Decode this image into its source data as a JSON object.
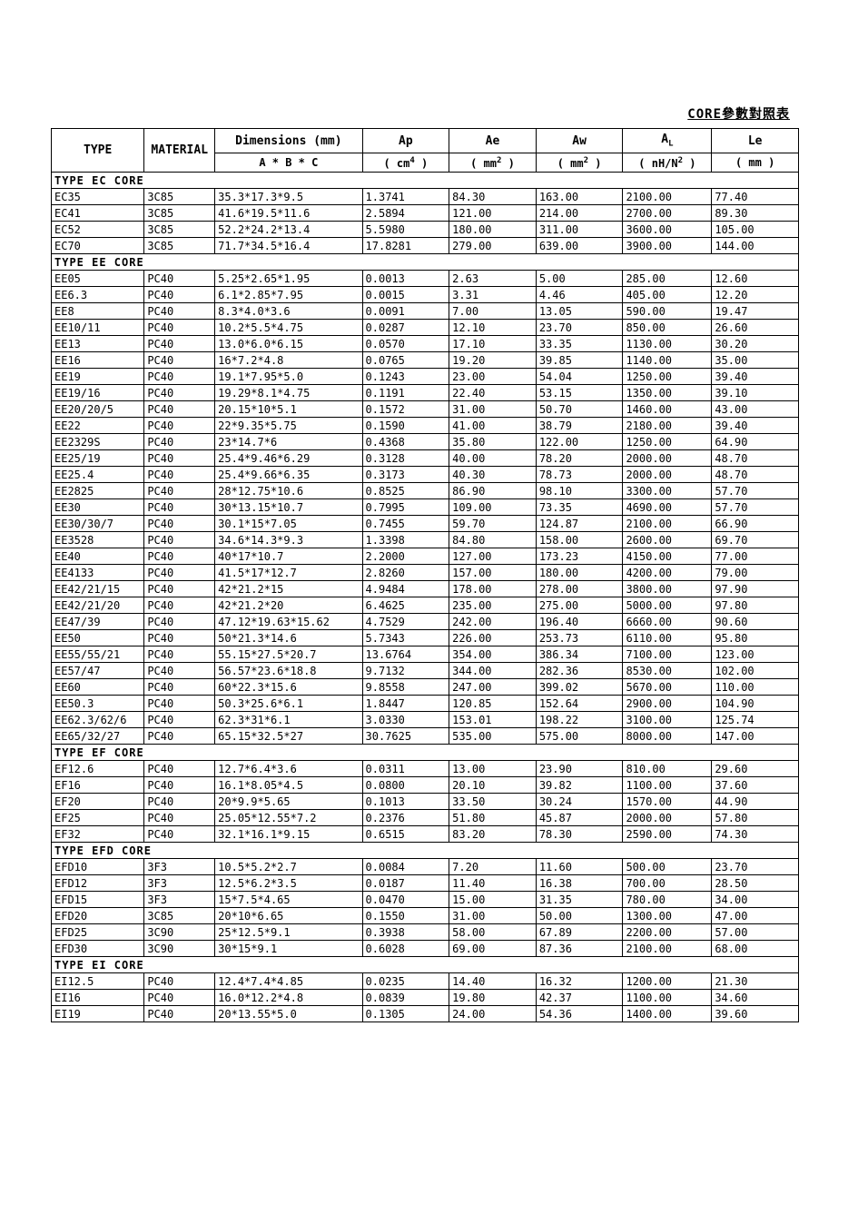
{
  "title": "CORE參數對照表",
  "columns": {
    "type": {
      "header": "TYPE",
      "unit": ""
    },
    "material": {
      "header": "MATERIAL",
      "unit": ""
    },
    "dim": {
      "header": "Dimensions (mm)",
      "unit_html": "A * B * C"
    },
    "ap": {
      "header": "Ap",
      "unit_html": "( cm<span class='sup'>4</span> )"
    },
    "ae": {
      "header": "Ae",
      "unit_html": "( mm<span class='sup'>2</span> )"
    },
    "aw": {
      "header": "Aw",
      "unit_html": "( mm<span class='sup'>2</span> )"
    },
    "al": {
      "header_html": "A<span class='sub'>L</span>",
      "unit_html": "( nH/N<span class='sup'>2</span> )"
    },
    "le": {
      "header": "Le",
      "unit_html": "( mm )"
    }
  },
  "sections": [
    {
      "label": "TYPE  EC   CORE",
      "rows": [
        [
          "EC35",
          "3C85",
          "35.3*17.3*9.5",
          "1.3741",
          "84.30",
          "163.00",
          "2100.00",
          "77.40"
        ],
        [
          "EC41",
          "3C85",
          "41.6*19.5*11.6",
          "2.5894",
          "121.00",
          "214.00",
          "2700.00",
          "89.30"
        ],
        [
          "EC52",
          "3C85",
          "52.2*24.2*13.4",
          "5.5980",
          "180.00",
          "311.00",
          "3600.00",
          "105.00"
        ],
        [
          "EC70",
          "3C85",
          "71.7*34.5*16.4",
          "17.8281",
          "279.00",
          "639.00",
          "3900.00",
          "144.00"
        ]
      ]
    },
    {
      "label": "TYPE  EE   CORE",
      "rows": [
        [
          "EE05",
          "PC40",
          "5.25*2.65*1.95",
          "0.0013",
          "2.63",
          "5.00",
          "285.00",
          "12.60"
        ],
        [
          "EE6.3",
          "PC40",
          "6.1*2.85*7.95",
          "0.0015",
          "3.31",
          "4.46",
          "405.00",
          "12.20"
        ],
        [
          "EE8",
          "PC40",
          "8.3*4.0*3.6",
          "0.0091",
          "7.00",
          "13.05",
          "590.00",
          "19.47"
        ],
        [
          "EE10/11",
          "PC40",
          "10.2*5.5*4.75",
          "0.0287",
          "12.10",
          "23.70",
          "850.00",
          "26.60"
        ],
        [
          "EE13",
          "PC40",
          "13.0*6.0*6.15",
          "0.0570",
          "17.10",
          "33.35",
          "1130.00",
          "30.20"
        ],
        [
          "EE16",
          "PC40",
          "16*7.2*4.8",
          "0.0765",
          "19.20",
          "39.85",
          "1140.00",
          "35.00"
        ],
        [
          "EE19",
          "PC40",
          "19.1*7.95*5.0",
          "0.1243",
          "23.00",
          "54.04",
          "1250.00",
          "39.40"
        ],
        [
          "EE19/16",
          "PC40",
          "19.29*8.1*4.75",
          "0.1191",
          "22.40",
          "53.15",
          "1350.00",
          "39.10"
        ],
        [
          "EE20/20/5",
          "PC40",
          "20.15*10*5.1",
          "0.1572",
          "31.00",
          "50.70",
          "1460.00",
          "43.00"
        ],
        [
          "EE22",
          "PC40",
          "22*9.35*5.75",
          "0.1590",
          "41.00",
          "38.79",
          "2180.00",
          "39.40"
        ],
        [
          "EE2329S",
          "PC40",
          "23*14.7*6",
          "0.4368",
          "35.80",
          "122.00",
          "1250.00",
          "64.90"
        ],
        [
          "EE25/19",
          "PC40",
          "25.4*9.46*6.29",
          "0.3128",
          "40.00",
          "78.20",
          "2000.00",
          "48.70"
        ],
        [
          "EE25.4",
          "PC40",
          "25.4*9.66*6.35",
          "0.3173",
          "40.30",
          "78.73",
          "2000.00",
          "48.70"
        ],
        [
          "EE2825",
          "PC40",
          "28*12.75*10.6",
          "0.8525",
          "86.90",
          "98.10",
          "3300.00",
          "57.70"
        ],
        [
          "EE30",
          "PC40",
          "30*13.15*10.7",
          "0.7995",
          "109.00",
          "73.35",
          "4690.00",
          "57.70"
        ],
        [
          "EE30/30/7",
          "PC40",
          "30.1*15*7.05",
          "0.7455",
          "59.70",
          "124.87",
          "2100.00",
          "66.90"
        ],
        [
          "EE3528",
          "PC40",
          "34.6*14.3*9.3",
          "1.3398",
          "84.80",
          "158.00",
          "2600.00",
          "69.70"
        ],
        [
          "EE40",
          "PC40",
          "40*17*10.7",
          "2.2000",
          "127.00",
          "173.23",
          "4150.00",
          "77.00"
        ],
        [
          "EE4133",
          "PC40",
          "41.5*17*12.7",
          "2.8260",
          "157.00",
          "180.00",
          "4200.00",
          "79.00"
        ],
        [
          "EE42/21/15",
          "PC40",
          "42*21.2*15",
          "4.9484",
          "178.00",
          "278.00",
          "3800.00",
          "97.90"
        ],
        [
          "EE42/21/20",
          "PC40",
          "42*21.2*20",
          "6.4625",
          "235.00",
          "275.00",
          "5000.00",
          "97.80"
        ],
        [
          "EE47/39",
          "PC40",
          "47.12*19.63*15.62",
          "4.7529",
          "242.00",
          "196.40",
          "6660.00",
          "90.60"
        ],
        [
          "EE50",
          "PC40",
          "50*21.3*14.6",
          "5.7343",
          "226.00",
          "253.73",
          "6110.00",
          "95.80"
        ],
        [
          "EE55/55/21",
          "PC40",
          "55.15*27.5*20.7",
          "13.6764",
          "354.00",
          "386.34",
          "7100.00",
          "123.00"
        ],
        [
          "EE57/47",
          "PC40",
          "56.57*23.6*18.8",
          "9.7132",
          "344.00",
          "282.36",
          "8530.00",
          "102.00"
        ],
        [
          "EE60",
          "PC40",
          "60*22.3*15.6",
          "9.8558",
          "247.00",
          "399.02",
          "5670.00",
          "110.00"
        ],
        [
          "EE50.3",
          "PC40",
          "50.3*25.6*6.1",
          "1.8447",
          "120.85",
          "152.64",
          "2900.00",
          "104.90"
        ],
        [
          "EE62.3/62/6",
          "PC40",
          "62.3*31*6.1",
          "3.0330",
          "153.01",
          "198.22",
          "3100.00",
          "125.74"
        ],
        [
          "EE65/32/27",
          "PC40",
          "65.15*32.5*27",
          "30.7625",
          "535.00",
          "575.00",
          "8000.00",
          "147.00"
        ]
      ]
    },
    {
      "label": "TYPE  EF   CORE",
      "rows": [
        [
          "EF12.6",
          "PC40",
          "12.7*6.4*3.6",
          "0.0311",
          "13.00",
          "23.90",
          "810.00",
          "29.60"
        ],
        [
          "EF16",
          "PC40",
          "16.1*8.05*4.5",
          "0.0800",
          "20.10",
          "39.82",
          "1100.00",
          "37.60"
        ],
        [
          "EF20",
          "PC40",
          "20*9.9*5.65",
          "0.1013",
          "33.50",
          "30.24",
          "1570.00",
          "44.90"
        ],
        [
          "EF25",
          "PC40",
          "25.05*12.55*7.2",
          "0.2376",
          "51.80",
          "45.87",
          "2000.00",
          "57.80"
        ],
        [
          "EF32",
          "PC40",
          "32.1*16.1*9.15",
          "0.6515",
          "83.20",
          "78.30",
          "2590.00",
          "74.30"
        ]
      ]
    },
    {
      "label": "TYPE  EFD  CORE",
      "rows": [
        [
          "EFD10",
          "3F3",
          "10.5*5.2*2.7",
          "0.0084",
          "7.20",
          "11.60",
          "500.00",
          "23.70"
        ],
        [
          "EFD12",
          "3F3",
          "12.5*6.2*3.5",
          "0.0187",
          "11.40",
          "16.38",
          "700.00",
          "28.50"
        ],
        [
          "EFD15",
          "3F3",
          "15*7.5*4.65",
          "0.0470",
          "15.00",
          "31.35",
          "780.00",
          "34.00"
        ],
        [
          "EFD20",
          "3C85",
          "20*10*6.65",
          "0.1550",
          "31.00",
          "50.00",
          "1300.00",
          "47.00"
        ],
        [
          "EFD25",
          "3C90",
          "25*12.5*9.1",
          "0.3938",
          "58.00",
          "67.89",
          "2200.00",
          "57.00"
        ],
        [
          "EFD30",
          "3C90",
          "30*15*9.1",
          "0.6028",
          "69.00",
          "87.36",
          "2100.00",
          "68.00"
        ]
      ]
    },
    {
      "label": "TYPE  EI   CORE",
      "rows": [
        [
          "EI12.5",
          "PC40",
          "12.4*7.4*4.85",
          "0.0235",
          "14.40",
          "16.32",
          "1200.00",
          "21.30"
        ],
        [
          "EI16",
          "PC40",
          "16.0*12.2*4.8",
          "0.0839",
          "19.80",
          "42.37",
          "1100.00",
          "34.60"
        ],
        [
          "EI19",
          "PC40",
          "20*13.55*5.0",
          "0.1305",
          "24.00",
          "54.36",
          "1400.00",
          "39.60"
        ]
      ]
    }
  ]
}
